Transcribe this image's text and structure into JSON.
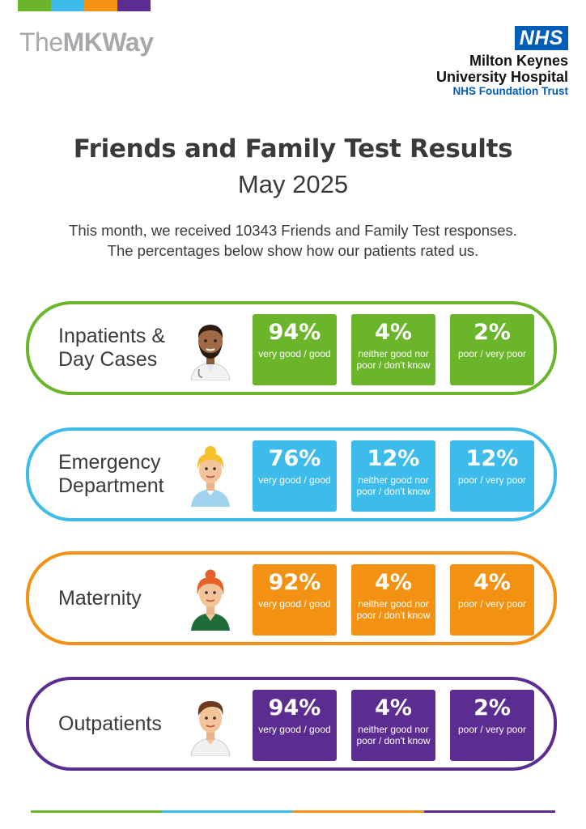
{
  "brand": {
    "mkway_part1": "The",
    "mkway_part2": "MK",
    "mkway_part3": "Way",
    "nhs_logo": "NHS",
    "org_line1": "Milton Keynes",
    "org_line2": "University Hospital",
    "trust_line": "NHS Foundation Trust"
  },
  "colors": {
    "green": "#6bb52b",
    "blue": "#3dbbea",
    "orange": "#f39212",
    "purple": "#5c2d91",
    "nhs_blue": "#005eb8"
  },
  "header": {
    "title": "Friends and Family Test Results",
    "period": "May 2025",
    "intro_line1": "This month, we received 10343 Friends and Family Test responses.",
    "intro_line2": "The percentages below show how our patients rated us."
  },
  "categories": [
    {
      "name_line1": "Inpatients &",
      "name_line2": "Day Cases",
      "avatar_icon": "male-doctor-icon",
      "good": {
        "pct": "94%",
        "label": "very good / good"
      },
      "neutral": {
        "pct": "4%",
        "label": "neither good nor poor / don't know"
      },
      "poor": {
        "pct": "2%",
        "label": "poor / very poor"
      }
    },
    {
      "name_line1": "Emergency",
      "name_line2": "Department",
      "avatar_icon": "female-nurse-icon",
      "good": {
        "pct": "76%",
        "label": "very good / good"
      },
      "neutral": {
        "pct": "12%",
        "label": "neither good nor poor / don't know"
      },
      "poor": {
        "pct": "12%",
        "label": "poor / very poor"
      }
    },
    {
      "name_line1": "Maternity",
      "name_line2": "",
      "avatar_icon": "female-midwife-icon",
      "good": {
        "pct": "92%",
        "label": "very good / good"
      },
      "neutral": {
        "pct": "4%",
        "label": "neither good nor poor / don't know"
      },
      "poor": {
        "pct": "4%",
        "label": "poor / very poor"
      }
    },
    {
      "name_line1": "Outpatients",
      "name_line2": "",
      "avatar_icon": "male-patient-icon",
      "good": {
        "pct": "94%",
        "label": "very good / good"
      },
      "neutral": {
        "pct": "4%",
        "label": "neither good nor poor / don't know"
      },
      "poor": {
        "pct": "2%",
        "label": "poor / very poor"
      }
    }
  ]
}
